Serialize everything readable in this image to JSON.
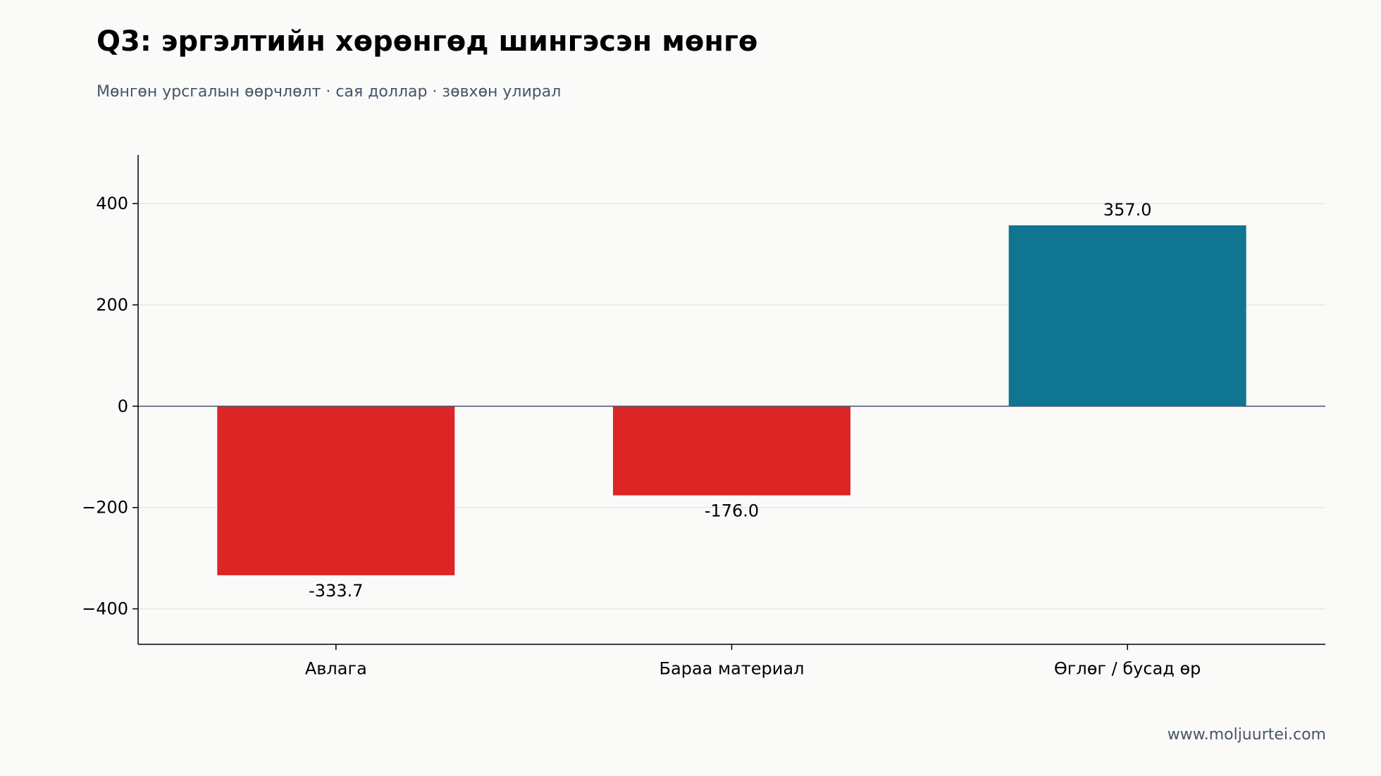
{
  "header": {
    "title": "Q3: эргэлтийн хөрөнгөд шингэсэн мөнгө",
    "subtitle": "Мөнгөн урсгалын өөрчлөлт · сая доллар · зөвхөн улирал"
  },
  "footer": {
    "source": "www.moljuurtei.com"
  },
  "chart_data": {
    "type": "bar",
    "categories": [
      "Авлага",
      "Бараа материал",
      "Өглөг / бусад өр"
    ],
    "values": [
      -333.7,
      -176.0,
      357.0
    ],
    "value_labels": [
      "-333.7",
      "-176.0",
      "357.0"
    ],
    "bar_colors": [
      "#dc2626",
      "#dc2626",
      "#0f7591"
    ],
    "y_ticks": [
      400,
      200,
      0,
      -200,
      -400
    ],
    "y_tick_labels": [
      "400",
      "200",
      "0",
      "−200",
      "−400"
    ],
    "ylim": [
      -470,
      496
    ],
    "grid": true,
    "legend": "none",
    "colors": {
      "negative": "#dc2626",
      "positive": "#0f7591",
      "zero_line": "#475569",
      "grid": "#e8e8e6",
      "axis": "#000000"
    }
  }
}
